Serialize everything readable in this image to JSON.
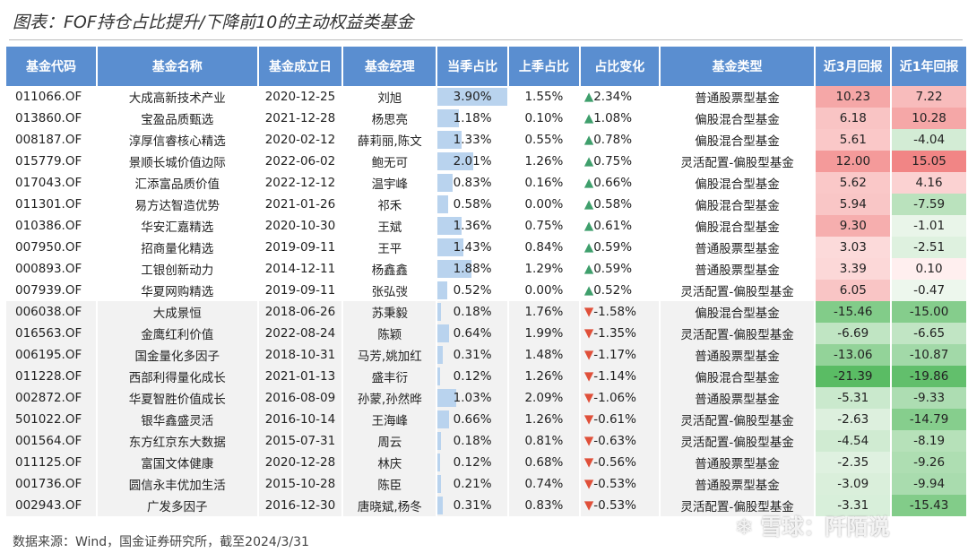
{
  "title": "图表：FOF持仓占比提升/下降前10的主动权益类基金",
  "headers": [
    "基金代码",
    "基金名称",
    "基金成立日",
    "基金经理",
    "当季占比",
    "上季占比",
    "占比变化",
    "基金类型",
    "近3月回报",
    "近1年回报"
  ],
  "rows": [
    [
      "011066.OF",
      "大成高新技术产业",
      "2020-12-25",
      "刘旭",
      "3.90%",
      "1.55%",
      "2.34%",
      "普通股票型基金",
      "10.23",
      "7.22"
    ],
    [
      "013860.OF",
      "宝盈品质甄选",
      "2021-12-28",
      "杨思亮",
      "1.18%",
      "0.10%",
      "1.08%",
      "偏股混合型基金",
      "6.18",
      "10.28"
    ],
    [
      "008187.OF",
      "淳厚信睿核心精选",
      "2020-02-12",
      "薛莉丽,陈文",
      "1.33%",
      "0.55%",
      "0.78%",
      "偏股混合型基金",
      "5.61",
      "-4.04"
    ],
    [
      "015779.OF",
      "景顺长城价值边际",
      "2022-06-02",
      "鲍无可",
      "2.01%",
      "1.26%",
      "0.75%",
      "灵活配置-偏股型基金",
      "12.00",
      "15.05"
    ],
    [
      "017043.OF",
      "汇添富品质价值",
      "2022-12-12",
      "温宇峰",
      "0.83%",
      "0.16%",
      "0.66%",
      "偏股混合型基金",
      "5.62",
      "4.16"
    ],
    [
      "011301.OF",
      "易方达智造优势",
      "2021-01-26",
      "祁禾",
      "0.58%",
      "0.00%",
      "0.58%",
      "偏股混合型基金",
      "5.94",
      "-7.59"
    ],
    [
      "010386.OF",
      "华安汇嘉精选",
      "2020-10-30",
      "王斌",
      "1.36%",
      "0.75%",
      "0.61%",
      "偏股混合型基金",
      "9.30",
      "-1.01"
    ],
    [
      "007950.OF",
      "招商量化精选",
      "2019-09-11",
      "王平",
      "1.43%",
      "0.84%",
      "0.59%",
      "普通股票型基金",
      "3.03",
      "-2.51"
    ],
    [
      "000893.OF",
      "工银创新动力",
      "2014-12-11",
      "杨鑫鑫",
      "1.88%",
      "1.29%",
      "0.59%",
      "普通股票型基金",
      "3.39",
      "0.10"
    ],
    [
      "007939.OF",
      "华夏网购精选",
      "2019-09-11",
      "张弘弢",
      "0.52%",
      "0.00%",
      "0.52%",
      "灵活配置-偏股型基金",
      "6.05",
      "-0.47"
    ],
    [
      "006038.OF",
      "大成景恒",
      "2018-06-26",
      "苏秉毅",
      "0.18%",
      "1.76%",
      "-1.58%",
      "偏股混合型基金",
      "-15.46",
      "-15.00"
    ],
    [
      "016563.OF",
      "金鹰红利价值",
      "2022-08-24",
      "陈颖",
      "0.64%",
      "1.99%",
      "-1.35%",
      "灵活配置-偏股型基金",
      "-6.69",
      "-6.65"
    ],
    [
      "006195.OF",
      "国金量化多因子",
      "2018-10-31",
      "马芳,姚加红",
      "0.31%",
      "1.48%",
      "-1.17%",
      "普通股票型基金",
      "-13.06",
      "-10.87"
    ],
    [
      "011228.OF",
      "西部利得量化成长",
      "2021-01-13",
      "盛丰衍",
      "0.12%",
      "1.26%",
      "-1.14%",
      "偏股混合型基金",
      "-21.39",
      "-19.86"
    ],
    [
      "002872.OF",
      "华夏智胜价值成长",
      "2016-08-09",
      "孙蒙,孙然晔",
      "1.03%",
      "2.09%",
      "-1.06%",
      "普通股票型基金",
      "-5.31",
      "-9.33"
    ],
    [
      "501022.OF",
      "银华鑫盛灵活",
      "2016-10-14",
      "王海峰",
      "0.66%",
      "1.26%",
      "-0.61%",
      "灵活配置-偏股型基金",
      "-2.63",
      "-14.79"
    ],
    [
      "001564.OF",
      "东方红京东大数据",
      "2015-07-31",
      "周云",
      "0.18%",
      "0.81%",
      "-0.63%",
      "灵活配置-偏股型基金",
      "-4.54",
      "-8.19"
    ],
    [
      "011125.OF",
      "富国文体健康",
      "2020-12-28",
      "林庆",
      "0.12%",
      "0.68%",
      "-0.56%",
      "普通股票型基金",
      "-2.35",
      "-9.26"
    ],
    [
      "001736.OF",
      "圆信永丰优加生活",
      "2015-10-28",
      "陈臣",
      "0.21%",
      "0.74%",
      "-0.53%",
      "普通股票型基金",
      "-3.09",
      "-9.94"
    ],
    [
      "002943.OF",
      "广发多因子",
      "2016-12-30",
      "唐晓斌,杨冬",
      "0.31%",
      "0.83%",
      "-0.53%",
      "灵活配置-偏股型基金",
      "-3.31",
      "-15.43"
    ]
  ],
  "footer": "数据来源：Wind，国金证券研究所，截至2024/3/31",
  "watermark": "雪球：阡陌说",
  "colors": {
    "header": "#5a8ed0",
    "bar": "#b9d3ee",
    "up": "#3f9f6c",
    "down": "#e0503a"
  }
}
